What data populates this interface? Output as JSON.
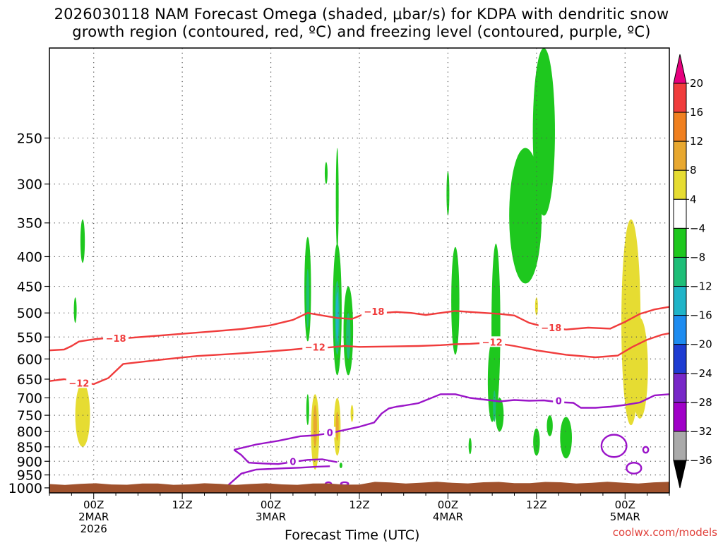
{
  "title_line1": "2026030118 NAM Forecast Omega (shaded, μbar/s) for KDPA with dendritic snow",
  "title_line2": "growth region (contoured, red, ºC) and freezing level (contoured, purple, ºC)",
  "credit": "coolwx.com/models",
  "chart_data": {
    "type": "heatmap",
    "title": "2026030118 NAM Forecast Omega (shaded, μbar/s) for KDPA with dendritic snow growth region (contoured, red, ºC) and freezing level (contoured, purple, ºC)",
    "xlabel": "Forecast Time (UTC)",
    "ylabel": "",
    "x_unit": "hours since 2026-03-01 18Z",
    "xlim": [
      0,
      84
    ],
    "ylim": [
      1020,
      175
    ],
    "y_scale": "log-pressure",
    "grid": true,
    "x_ticks": [
      {
        "x": 6,
        "label": [
          "00Z",
          "2MAR",
          "2026"
        ]
      },
      {
        "x": 18,
        "label": [
          "12Z"
        ]
      },
      {
        "x": 30,
        "label": [
          "00Z",
          "3MAR"
        ]
      },
      {
        "x": 42,
        "label": [
          "12Z"
        ]
      },
      {
        "x": 54,
        "label": [
          "00Z",
          "4MAR"
        ]
      },
      {
        "x": 66,
        "label": [
          "12Z"
        ]
      },
      {
        "x": 78,
        "label": [
          "00Z",
          "5MAR"
        ]
      }
    ],
    "y_ticks": [
      250,
      300,
      350,
      400,
      450,
      500,
      550,
      600,
      650,
      700,
      750,
      800,
      850,
      900,
      950,
      1000
    ],
    "colorbar": {
      "labels": [
        "20",
        "16",
        "12",
        "8",
        "4",
        "−4",
        "−8",
        "−12",
        "−16",
        "−20",
        "−24",
        "−28",
        "−32",
        "−36"
      ],
      "bins": [
        {
          "lo": 16,
          "hi": 20,
          "color": "#f03c3c"
        },
        {
          "lo": 12,
          "hi": 16,
          "color": "#f08020"
        },
        {
          "lo": 8,
          "hi": 12,
          "color": "#e8a830"
        },
        {
          "lo": 4,
          "hi": 8,
          "color": "#e6dc32"
        },
        {
          "lo": -4,
          "hi": 4,
          "color": "#ffffff"
        },
        {
          "lo": -8,
          "hi": -4,
          "color": "#1ec81e"
        },
        {
          "lo": -12,
          "hi": -8,
          "color": "#1ebe78"
        },
        {
          "lo": -16,
          "hi": -12,
          "color": "#20b4c8"
        },
        {
          "lo": -20,
          "hi": -16,
          "color": "#1e8cf0"
        },
        {
          "lo": -24,
          "hi": -20,
          "color": "#1e3cd2"
        },
        {
          "lo": -28,
          "hi": -24,
          "color": "#7828c8"
        },
        {
          "lo": -32,
          "hi": -28,
          "color": "#a000c8"
        },
        {
          "lo": -36,
          "hi": -32,
          "color": "#aaaaaa"
        }
      ],
      "upper_extension_color": "#e6007e",
      "lower_extension_color": "#000000"
    },
    "terrain": {
      "color": "#a0522d",
      "top_pressure": 985
    },
    "shaded_regions": [
      {
        "value": -6,
        "x": 3.5,
        "p_top": 470,
        "p_bot": 520,
        "half_width": 0.15
      },
      {
        "value": -6,
        "x": 4.5,
        "p_top": 345,
        "p_bot": 410,
        "half_width": 0.3
      },
      {
        "value": 6,
        "x": 4.5,
        "p_top": 660,
        "p_bot": 850,
        "half_width": 1.0
      },
      {
        "value": -6,
        "x": 35,
        "p_top": 370,
        "p_bot": 560,
        "half_width": 0.45
      },
      {
        "value": -10,
        "x": 35,
        "p_top": 420,
        "p_bot": 530,
        "half_width": 0.2
      },
      {
        "value": -6,
        "x": 35,
        "p_top": 690,
        "p_bot": 780,
        "half_width": 0.15
      },
      {
        "value": 6,
        "x": 36,
        "p_top": 690,
        "p_bot": 930,
        "half_width": 0.55
      },
      {
        "value": 10,
        "x": 36,
        "p_top": 720,
        "p_bot": 850,
        "half_width": 0.25
      },
      {
        "value": -6,
        "x": 37.5,
        "p_top": 275,
        "p_bot": 300,
        "half_width": 0.15
      },
      {
        "value": -6,
        "x": 39,
        "p_top": 260,
        "p_bot": 390,
        "half_width": 0.15
      },
      {
        "value": -6,
        "x": 39,
        "p_top": 380,
        "p_bot": 640,
        "half_width": 0.6
      },
      {
        "value": -10,
        "x": 39,
        "p_top": 440,
        "p_bot": 590,
        "half_width": 0.35
      },
      {
        "value": -14,
        "x": 39,
        "p_top": 460,
        "p_bot": 560,
        "half_width": 0.15
      },
      {
        "value": -6,
        "x": 40.5,
        "p_top": 450,
        "p_bot": 640,
        "half_width": 0.65
      },
      {
        "value": -10,
        "x": 40.5,
        "p_top": 500,
        "p_bot": 600,
        "half_width": 0.3
      },
      {
        "value": 6,
        "x": 39,
        "p_top": 700,
        "p_bot": 880,
        "half_width": 0.45
      },
      {
        "value": 10,
        "x": 39,
        "p_top": 740,
        "p_bot": 830,
        "half_width": 0.2
      },
      {
        "value": 6,
        "x": 41,
        "p_top": 720,
        "p_bot": 770,
        "half_width": 0.15
      },
      {
        "value": -6,
        "x": 39.5,
        "p_top": 905,
        "p_bot": 925,
        "half_width": 0.12
      },
      {
        "value": -6,
        "x": 54,
        "p_top": 285,
        "p_bot": 340,
        "half_width": 0.15
      },
      {
        "value": -6,
        "x": 55,
        "p_top": 385,
        "p_bot": 590,
        "half_width": 0.55
      },
      {
        "value": -6,
        "x": 57,
        "p_top": 820,
        "p_bot": 875,
        "half_width": 0.2
      },
      {
        "value": -6,
        "x": 60.5,
        "p_top": 380,
        "p_bot": 730,
        "half_width": 0.6
      },
      {
        "value": -6,
        "x": 60,
        "p_top": 560,
        "p_bot": 770,
        "half_width": 0.6
      },
      {
        "value": -10,
        "x": 60.3,
        "p_top": 680,
        "p_bot": 770,
        "half_width": 0.2
      },
      {
        "value": -6,
        "x": 61,
        "p_top": 700,
        "p_bot": 800,
        "half_width": 0.55
      },
      {
        "value": 6,
        "x": 66,
        "p_top": 470,
        "p_bot": 505,
        "half_width": 0.12
      },
      {
        "value": -6,
        "x": 64.5,
        "p_top": 260,
        "p_bot": 445,
        "half_width": 2.2
      },
      {
        "value": -6,
        "x": 67,
        "p_top": 175,
        "p_bot": 340,
        "half_width": 1.5
      },
      {
        "value": -6,
        "x": 68,
        "p_top": 260,
        "p_bot": 295,
        "half_width": 0.35
      },
      {
        "value": -6,
        "x": 67.8,
        "p_top": 750,
        "p_bot": 815,
        "half_width": 0.4
      },
      {
        "value": -6,
        "x": 66,
        "p_top": 790,
        "p_bot": 880,
        "half_width": 0.45
      },
      {
        "value": -6,
        "x": 70,
        "p_top": 755,
        "p_bot": 890,
        "half_width": 0.8
      },
      {
        "value": 6,
        "x": 78.8,
        "p_top": 345,
        "p_bot": 780,
        "half_width": 1.3
      },
      {
        "value": 6,
        "x": 80,
        "p_top": 510,
        "p_bot": 760,
        "half_width": 1.1
      }
    ],
    "isotherms": [
      {
        "level": -18,
        "color": "#f03c3c",
        "label": "−18",
        "points": [
          [
            0,
            580
          ],
          [
            2,
            578
          ],
          [
            3,
            570
          ],
          [
            4,
            560
          ],
          [
            6,
            555
          ],
          [
            8,
            552
          ],
          [
            10,
            553
          ],
          [
            14,
            548
          ],
          [
            18,
            543
          ],
          [
            22,
            538
          ],
          [
            26,
            533
          ],
          [
            30,
            525
          ],
          [
            33,
            514
          ],
          [
            35,
            500
          ],
          [
            37,
            505
          ],
          [
            39,
            510
          ],
          [
            41,
            512
          ],
          [
            43,
            500
          ],
          [
            45,
            500
          ],
          [
            47,
            498
          ],
          [
            49,
            500
          ],
          [
            51,
            504
          ],
          [
            53,
            500
          ],
          [
            55,
            496
          ],
          [
            57,
            498
          ],
          [
            59,
            500
          ],
          [
            61,
            502
          ],
          [
            63,
            505
          ],
          [
            65,
            520
          ],
          [
            67,
            528
          ],
          [
            70,
            534
          ],
          [
            73,
            530
          ],
          [
            76,
            532
          ],
          [
            78,
            518
          ],
          [
            80,
            502
          ],
          [
            82,
            493
          ],
          [
            84,
            488
          ]
        ],
        "label_positions": [
          [
            9,
            553
          ],
          [
            44,
            497
          ],
          [
            68,
            530
          ]
        ]
      },
      {
        "level": -12,
        "color": "#f03c3c",
        "label": "−12",
        "points": [
          [
            0,
            655
          ],
          [
            2,
            650
          ],
          [
            4,
            656
          ],
          [
            6,
            663
          ],
          [
            8,
            647
          ],
          [
            10,
            612
          ],
          [
            12,
            608
          ],
          [
            16,
            600
          ],
          [
            20,
            593
          ],
          [
            25,
            588
          ],
          [
            30,
            582
          ],
          [
            33,
            578
          ],
          [
            35,
            575
          ],
          [
            38,
            573
          ],
          [
            40,
            570
          ],
          [
            42,
            572
          ],
          [
            46,
            571
          ],
          [
            50,
            570
          ],
          [
            53,
            568
          ],
          [
            55,
            566
          ],
          [
            57,
            565
          ],
          [
            60,
            562
          ],
          [
            63,
            570
          ],
          [
            66,
            580
          ],
          [
            70,
            590
          ],
          [
            74,
            596
          ],
          [
            77,
            592
          ],
          [
            79,
            572
          ],
          [
            81,
            556
          ],
          [
            83,
            545
          ],
          [
            84,
            542
          ]
        ],
        "label_positions": [
          [
            4,
            660
          ],
          [
            36,
            572
          ],
          [
            60,
            561
          ]
        ]
      },
      {
        "level": 0,
        "color": "#9a14c8",
        "label": "0",
        "points": [
          [
            24,
            995
          ],
          [
            26,
            945
          ],
          [
            28,
            930
          ],
          [
            32,
            925
          ],
          [
            34,
            923
          ],
          [
            36,
            920
          ],
          [
            38,
            918
          ]
        ],
        "label_positions": []
      },
      {
        "level": 0,
        "color": "#9a14c8",
        "label": "0",
        "points": [
          [
            25,
            860
          ],
          [
            28,
            842
          ],
          [
            31,
            830
          ],
          [
            34,
            815
          ],
          [
            36,
            812
          ],
          [
            38,
            805
          ],
          [
            40,
            795
          ],
          [
            42,
            785
          ],
          [
            44,
            772
          ],
          [
            45,
            745
          ],
          [
            46,
            730
          ],
          [
            47,
            725
          ],
          [
            48,
            722
          ],
          [
            50,
            715
          ],
          [
            53,
            690
          ],
          [
            55,
            690
          ],
          [
            57,
            700
          ],
          [
            59,
            705
          ],
          [
            61,
            710
          ],
          [
            63,
            706
          ],
          [
            65,
            708
          ],
          [
            67,
            707
          ],
          [
            69,
            712
          ],
          [
            71,
            714
          ],
          [
            72,
            728
          ],
          [
            74,
            728
          ],
          [
            76,
            725
          ],
          [
            78,
            720
          ],
          [
            80,
            713
          ],
          [
            82,
            693
          ],
          [
            84,
            690
          ]
        ],
        "label_positions": [
          [
            38,
            803
          ],
          [
            69,
            708
          ]
        ]
      },
      {
        "level": 0,
        "color": "#9a14c8",
        "label": "0",
        "points": [
          [
            25,
            860
          ],
          [
            26,
            878
          ],
          [
            27,
            905
          ],
          [
            29,
            908
          ],
          [
            31,
            910
          ],
          [
            33,
            902
          ],
          [
            35,
            895
          ],
          [
            37,
            893
          ],
          [
            39,
            903
          ]
        ],
        "label_positions": [
          [
            33,
            900
          ]
        ]
      }
    ],
    "isotherm_closed_loops": [
      {
        "color": "#9a14c8",
        "cx": 76.5,
        "cy": 850,
        "rx": 1.7,
        "ry_top": 810,
        "ry_bot": 885
      },
      {
        "color": "#9a14c8",
        "cx": 79.2,
        "cy": 925,
        "rx": 1.0,
        "ry_top": 905,
        "ry_bot": 945
      },
      {
        "color": "#9a14c8",
        "cx": 80.8,
        "cy": 860,
        "rx": 0.35,
        "ry_top": 850,
        "ry_bot": 870
      },
      {
        "color": "#9a14c8",
        "cx": 37.8,
        "cy": 985,
        "rx": 0.4,
        "ry_top": 978,
        "ry_bot": 992
      },
      {
        "color": "#9a14c8",
        "cx": 40,
        "cy": 982,
        "rx": 0.5,
        "ry_top": 978,
        "ry_bot": 990
      }
    ]
  }
}
